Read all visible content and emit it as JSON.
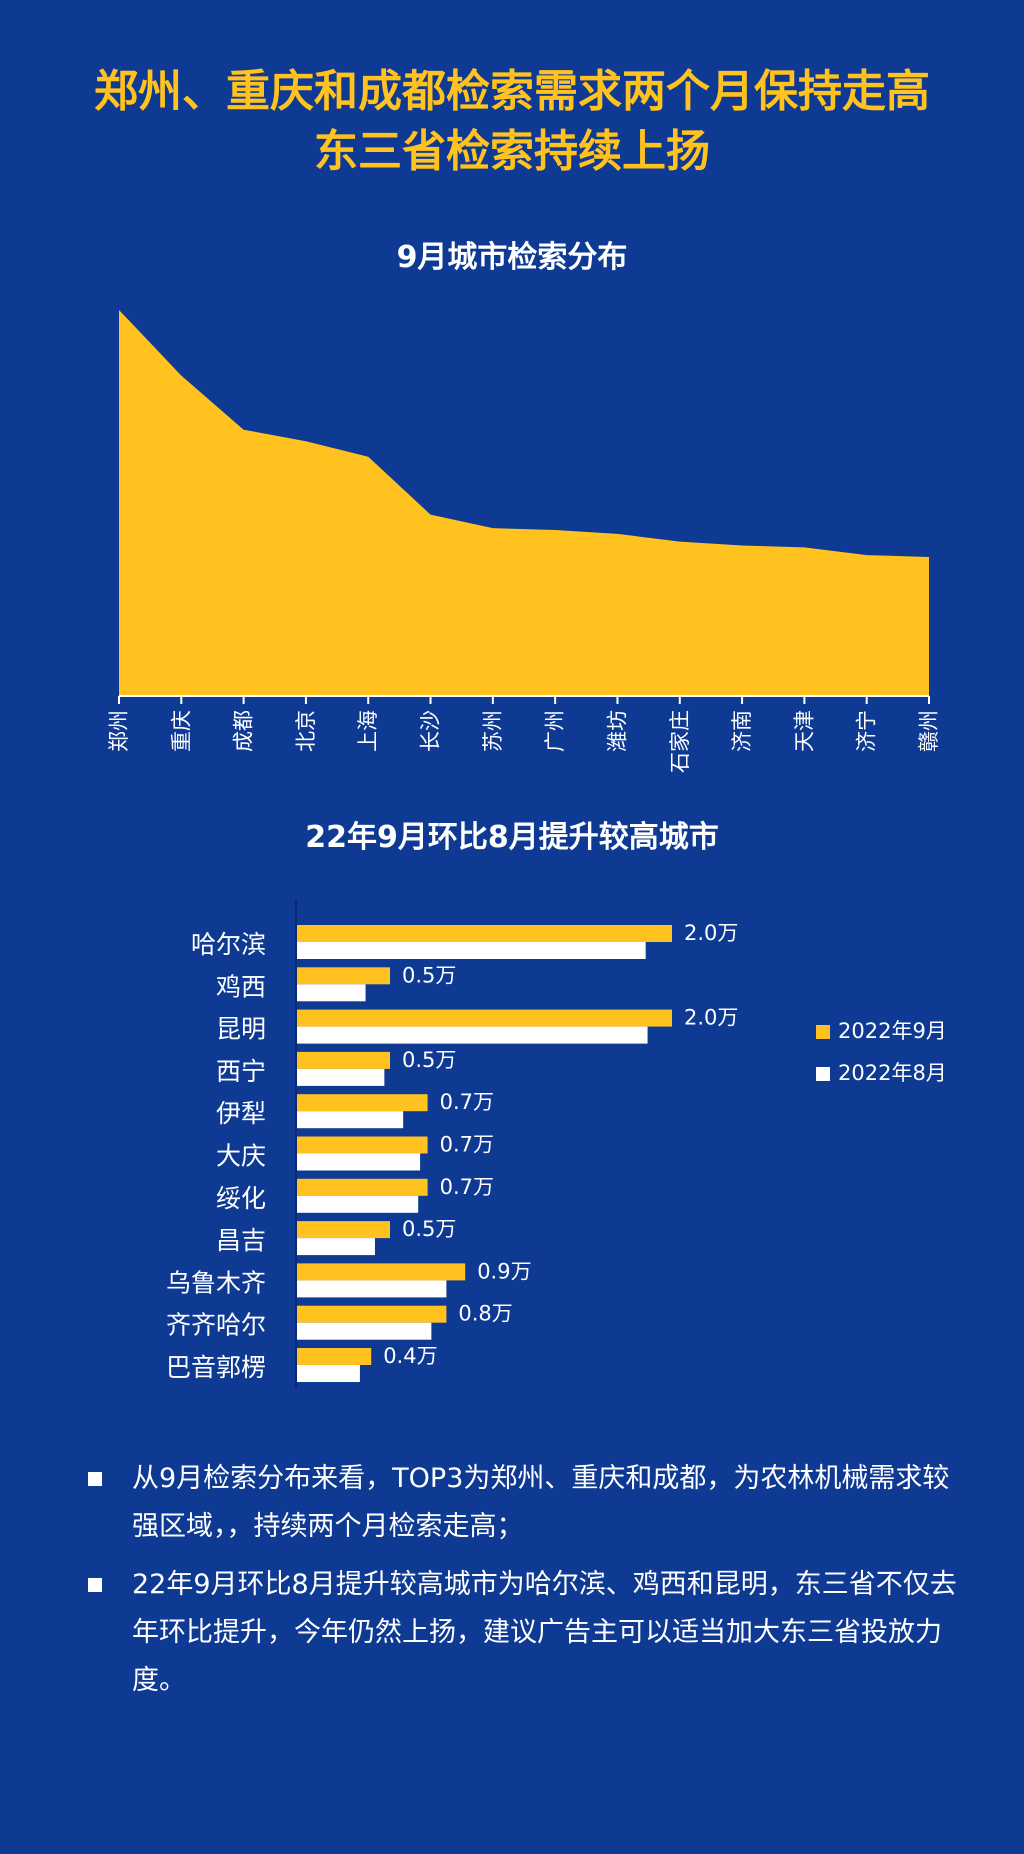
{
  "headline": {
    "line1": "郑州、重庆和成都检索需求两个月保持走高",
    "line2": "东三省检索持续上扬"
  },
  "colors": {
    "background": "#0f3a93",
    "accent": "#ffc21e",
    "secondary": "#ffffff"
  },
  "chart_data": [
    {
      "type": "area",
      "title": "9月城市检索分布",
      "categories": [
        "郑州",
        "重庆",
        "成都",
        "北京",
        "上海",
        "长沙",
        "苏州",
        "广州",
        "潍坊",
        "石家庄",
        "济南",
        "天津",
        "济宁",
        "赣州"
      ],
      "values": [
        100,
        83,
        69,
        66,
        62,
        47,
        43.5,
        43,
        42,
        40,
        39,
        38.5,
        36.5,
        36
      ],
      "ylim": [
        0,
        100
      ],
      "grid": false
    },
    {
      "type": "bar",
      "orientation": "horizontal",
      "title": "22年9月环比8月提升较高城市",
      "categories": [
        "哈尔滨",
        "鸡西",
        "昆明",
        "西宁",
        "伊犁",
        "大庆",
        "绥化",
        "昌吉",
        "乌鲁木齐",
        "齐齐哈尔",
        "巴音郭楞"
      ],
      "series": [
        {
          "name": "2022年9月",
          "color": "#ffc21e",
          "values": [
            2.0,
            0.5,
            2.0,
            0.5,
            0.7,
            0.7,
            0.7,
            0.5,
            0.9,
            0.8,
            0.4
          ]
        },
        {
          "name": "2022年8月",
          "color": "#ffffff",
          "values": [
            1.86,
            0.37,
            1.87,
            0.47,
            0.57,
            0.66,
            0.65,
            0.42,
            0.8,
            0.72,
            0.34
          ]
        }
      ],
      "data_labels": [
        "2.0万",
        "0.5万",
        "2.0万",
        "0.5万",
        "0.7万",
        "0.7万",
        "0.7万",
        "0.5万",
        "0.9万",
        "0.8万",
        "0.4万"
      ],
      "legend_position": "right"
    }
  ],
  "notes": [
    "从9月检索分布来看，TOP3为郑州、重庆和成都，为农林机械需求较强区域，，持续两个月检索走高；",
    "22年9月环比8月提升较高城市为哈尔滨、鸡西和昆明，东三省不仅去年环比提升，今年仍然上扬，建议广告主可以适当加大东三省投放力度。"
  ]
}
